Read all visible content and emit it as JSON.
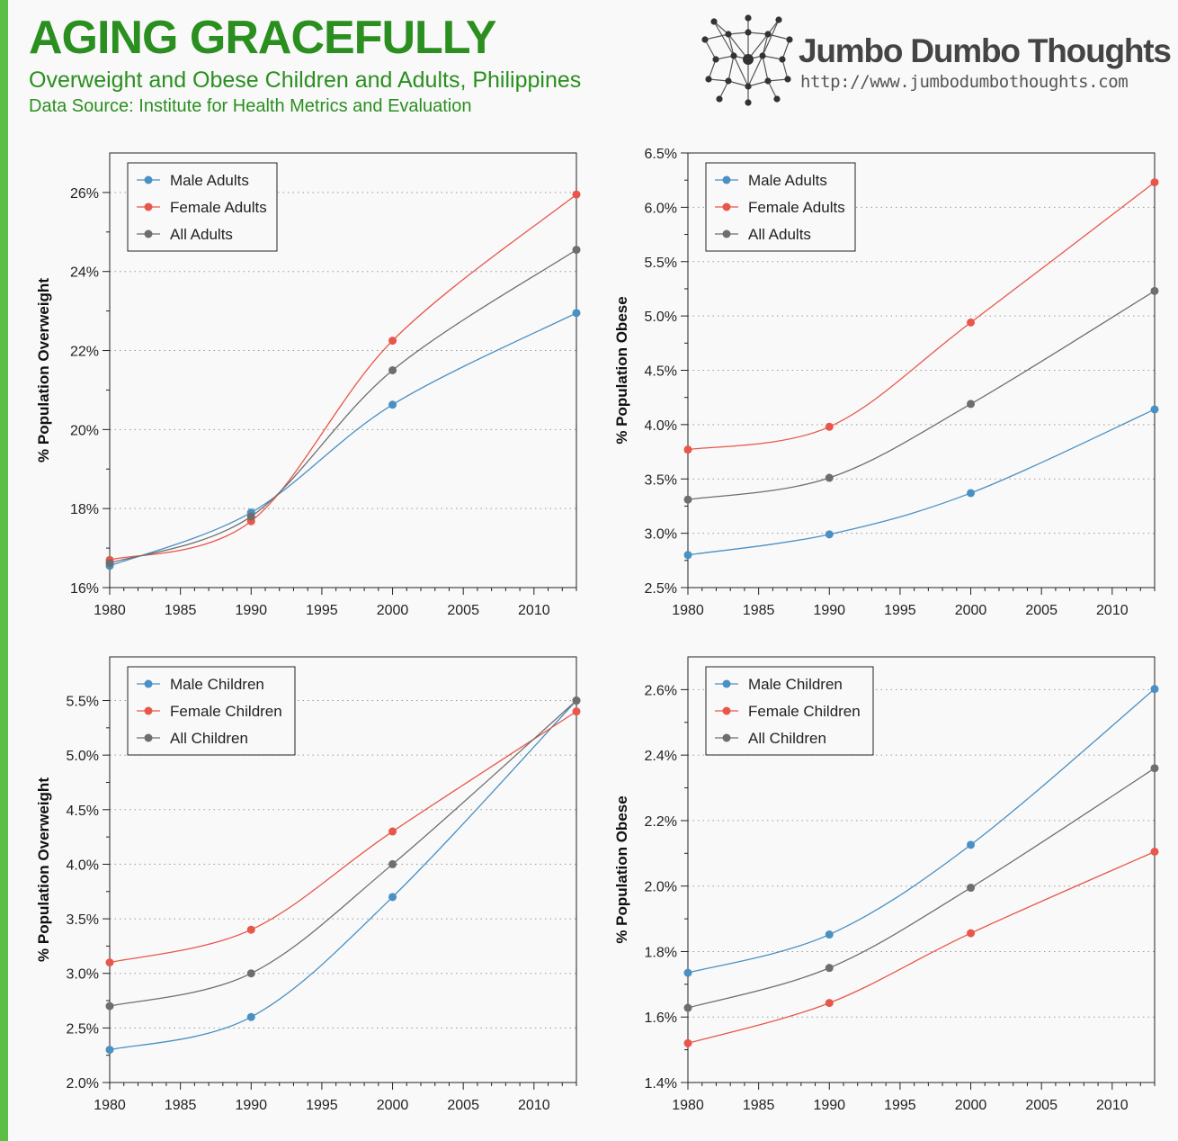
{
  "header": {
    "title": "AGING GRACEFULLY",
    "subtitle": "Overweight and Obese Children and Adults, Philippines",
    "source": "Data Source: Institute for Health Metrics and Evaluation"
  },
  "brand": {
    "name": "Jumbo Dumbo Thoughts",
    "url": "http://www.jumbodumbothoughts.com",
    "logo_icon": "network-graph-icon"
  },
  "colors": {
    "male": "#4a90c4",
    "female": "#e8574a",
    "all": "#6e6e6e",
    "title_green": "#2a8f1f",
    "sidebar_green": "#5bbf45"
  },
  "chart_data": [
    {
      "type": "line",
      "ylabel": "% Population Overweight",
      "xlim": [
        1980,
        2013
      ],
      "xticks": [
        1980,
        1985,
        1990,
        1995,
        2000,
        2005,
        2010
      ],
      "ylim": [
        16,
        27
      ],
      "yticks": [
        16,
        18,
        20,
        22,
        24,
        26
      ],
      "ytick_labels": [
        "16%",
        "18%",
        "20%",
        "22%",
        "24%",
        "26%"
      ],
      "grid": "horizontal dotted",
      "legend_position": "top-left",
      "x": [
        1980,
        1990,
        2000,
        2013
      ],
      "series": [
        {
          "name": "Male Adults",
          "color": "#4a90c4",
          "values": [
            16.55,
            17.9,
            20.63,
            22.95
          ]
        },
        {
          "name": "Female Adults",
          "color": "#e8574a",
          "values": [
            16.7,
            17.68,
            22.25,
            25.95
          ]
        },
        {
          "name": "All Adults",
          "color": "#6e6e6e",
          "values": [
            16.62,
            17.8,
            21.5,
            24.55
          ]
        }
      ]
    },
    {
      "type": "line",
      "ylabel": "% Population Obese",
      "xlim": [
        1980,
        2013
      ],
      "xticks": [
        1980,
        1985,
        1990,
        1995,
        2000,
        2005,
        2010
      ],
      "ylim": [
        2.5,
        6.5
      ],
      "yticks": [
        2.5,
        3.0,
        3.5,
        4.0,
        4.5,
        5.0,
        5.5,
        6.0,
        6.5
      ],
      "ytick_labels": [
        "2.5%",
        "3.0%",
        "3.5%",
        "4.0%",
        "4.5%",
        "5.0%",
        "5.5%",
        "6.0%",
        "6.5%"
      ],
      "grid": "horizontal dotted",
      "legend_position": "top-left",
      "x": [
        1980,
        1990,
        2000,
        2013
      ],
      "series": [
        {
          "name": "Male Adults",
          "color": "#4a90c4",
          "values": [
            2.8,
            2.99,
            3.37,
            4.14
          ]
        },
        {
          "name": "Female Adults",
          "color": "#e8574a",
          "values": [
            3.77,
            3.98,
            4.94,
            6.23
          ]
        },
        {
          "name": "All Adults",
          "color": "#6e6e6e",
          "values": [
            3.31,
            3.51,
            4.19,
            5.23
          ]
        }
      ]
    },
    {
      "type": "line",
      "ylabel": "% Population Overweight",
      "xlim": [
        1980,
        2013
      ],
      "xticks": [
        1980,
        1985,
        1990,
        1995,
        2000,
        2005,
        2010
      ],
      "ylim": [
        2.0,
        5.9
      ],
      "yticks": [
        2.0,
        2.5,
        3.0,
        3.5,
        4.0,
        4.5,
        5.0,
        5.5
      ],
      "ytick_labels": [
        "2.0%",
        "2.5%",
        "3.0%",
        "3.5%",
        "4.0%",
        "4.5%",
        "5.0%",
        "5.5%"
      ],
      "grid": "horizontal dotted",
      "legend_position": "top-left",
      "x": [
        1980,
        1990,
        2000,
        2013
      ],
      "series": [
        {
          "name": "Male Children",
          "color": "#4a90c4",
          "values": [
            2.3,
            2.6,
            3.7,
            5.5
          ]
        },
        {
          "name": "Female Children",
          "color": "#e8574a",
          "values": [
            3.1,
            3.4,
            4.3,
            5.4
          ]
        },
        {
          "name": "All Children",
          "color": "#6e6e6e",
          "values": [
            2.7,
            3.0,
            4.0,
            5.5
          ]
        }
      ]
    },
    {
      "type": "line",
      "ylabel": "% Population Obese",
      "xlim": [
        1980,
        2013
      ],
      "xticks": [
        1980,
        1985,
        1990,
        1995,
        2000,
        2005,
        2010
      ],
      "ylim": [
        1.4,
        2.7
      ],
      "yticks": [
        1.4,
        1.6,
        1.8,
        2.0,
        2.2,
        2.4,
        2.6
      ],
      "ytick_labels": [
        "1.4%",
        "1.6%",
        "1.8%",
        "2.0%",
        "2.2%",
        "2.4%",
        "2.6%"
      ],
      "grid": "horizontal dotted",
      "legend_position": "top-left",
      "x": [
        1980,
        1990,
        2000,
        2013
      ],
      "series": [
        {
          "name": "Male Children",
          "color": "#4a90c4",
          "values": [
            1.735,
            1.852,
            2.126,
            2.602
          ]
        },
        {
          "name": "Female Children",
          "color": "#e8574a",
          "values": [
            1.52,
            1.643,
            1.856,
            2.105
          ]
        },
        {
          "name": "All Children",
          "color": "#6e6e6e",
          "values": [
            1.628,
            1.75,
            1.995,
            2.36
          ]
        }
      ]
    }
  ]
}
